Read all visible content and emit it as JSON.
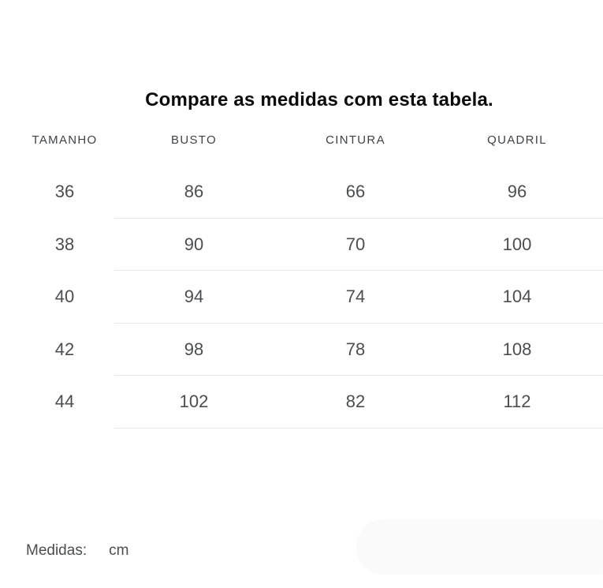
{
  "title": "Compare as medidas com esta tabela.",
  "table": {
    "headers": [
      "TAMANHO",
      "BUSTO",
      "CINTURA",
      "QUADRIL"
    ],
    "rows": [
      [
        "36",
        "86",
        "66",
        "96"
      ],
      [
        "38",
        "90",
        "70",
        "100"
      ],
      [
        "40",
        "94",
        "74",
        "104"
      ],
      [
        "42",
        "98",
        "78",
        "108"
      ],
      [
        "44",
        "102",
        "82",
        "112"
      ]
    ]
  },
  "footer": {
    "label": "Medidas:",
    "unit": "cm"
  },
  "colors": {
    "background": "#ffffff",
    "title_text": "#0b0b0b",
    "header_text": "#3e4347",
    "cell_text": "#4b4e50",
    "divider": "#e9e9e9",
    "pill_background": "#fafafa"
  }
}
